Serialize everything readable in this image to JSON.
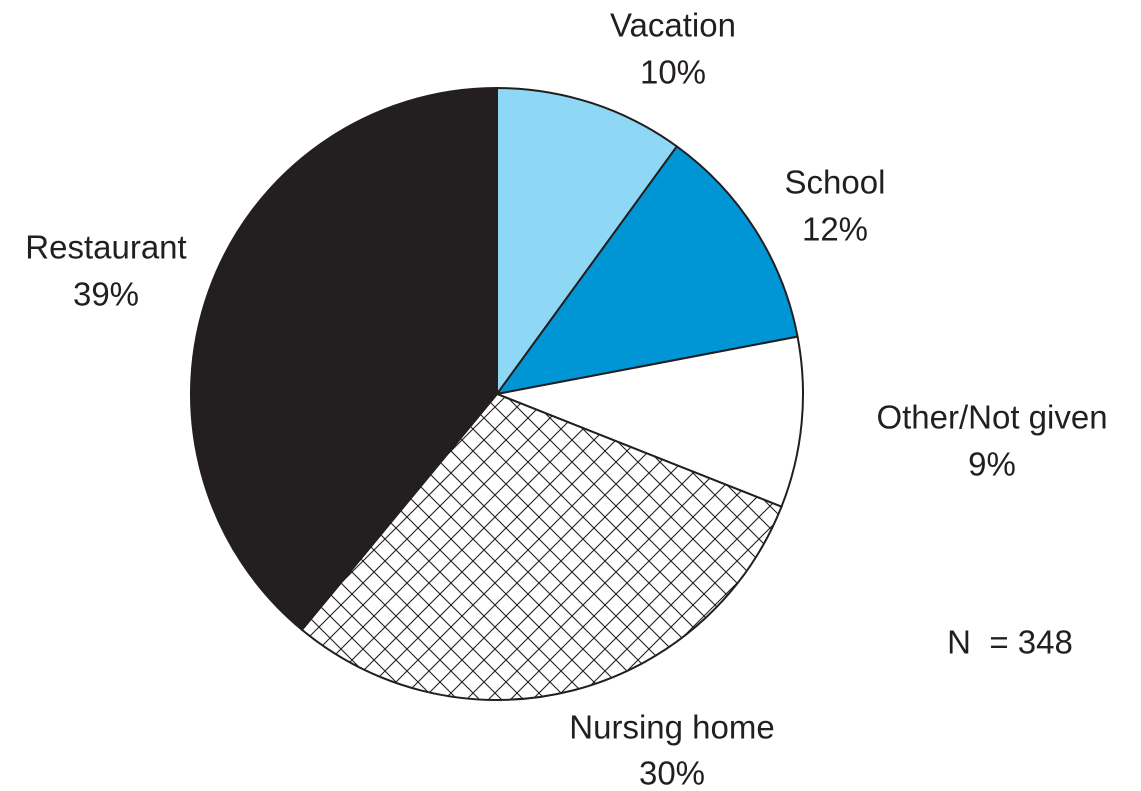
{
  "chart_data": {
    "type": "pie",
    "categories": [
      "Vacation",
      "School",
      "Other/Not given",
      "Nursing home",
      "Restaurant"
    ],
    "values": [
      10,
      12,
      9,
      30,
      39
    ],
    "value_labels": [
      "10%",
      "12%",
      "9%",
      "30%",
      "39%"
    ],
    "colors": [
      "#8fd8f5",
      "#0096d6",
      "#ffffff",
      "hatch",
      "#231f20"
    ],
    "annotation": "N  = 348"
  }
}
